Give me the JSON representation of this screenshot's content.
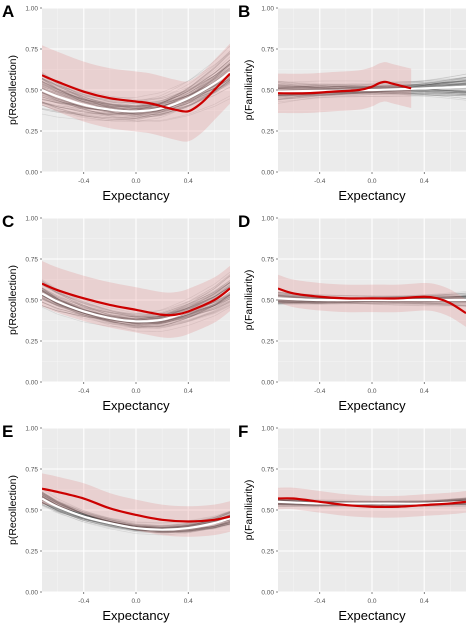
{
  "chart_data": [
    {
      "panel": "A",
      "type": "line",
      "xlabel": "Expectancy",
      "ylabel": "p(Recollection)",
      "xlim": [
        -0.72,
        0.72
      ],
      "ylim": [
        0,
        1
      ],
      "x_ticks": [
        "-0.4",
        "0.0",
        "0.4"
      ],
      "y_ticks": [
        "0.00",
        "0.25",
        "0.50",
        "0.75",
        "1.00"
      ],
      "band_spread": 0.17,
      "series": [
        {
          "role": "posterior-mean",
          "color": "#ffffff",
          "x": [
            -0.72,
            -0.6,
            -0.4,
            -0.2,
            0.0,
            0.2,
            0.4,
            0.6,
            0.72
          ],
          "y": [
            0.5,
            0.46,
            0.41,
            0.38,
            0.37,
            0.39,
            0.45,
            0.54,
            0.61
          ]
        },
        {
          "role": "observed",
          "color": "#cc0000",
          "x": [
            -0.72,
            -0.6,
            -0.4,
            -0.2,
            0.0,
            0.1,
            0.2,
            0.3,
            0.4,
            0.5,
            0.6,
            0.72
          ],
          "y": [
            0.59,
            0.55,
            0.49,
            0.45,
            0.43,
            0.42,
            0.4,
            0.38,
            0.37,
            0.42,
            0.5,
            0.6
          ]
        }
      ]
    },
    {
      "panel": "B",
      "type": "line",
      "xlabel": "Expectancy",
      "ylabel": "p(Familiarity)",
      "xlim": [
        -0.72,
        0.72
      ],
      "ylim": [
        0,
        1
      ],
      "x_ticks": [
        "-0.4",
        "0.0",
        "0.4"
      ],
      "y_ticks": [
        "0.00",
        "0.25",
        "0.50",
        "0.75",
        "1.00"
      ],
      "band_spread": 0.1,
      "series": [
        {
          "role": "posterior-mean",
          "color": "#ffffff",
          "x": [
            -0.72,
            -0.4,
            0.0,
            0.4,
            0.72
          ],
          "y": [
            0.49,
            0.495,
            0.5,
            0.51,
            0.52
          ]
        },
        {
          "role": "observed",
          "color": "#cc0000",
          "x": [
            -0.72,
            -0.5,
            -0.3,
            -0.1,
            0.0,
            0.05,
            0.1,
            0.15,
            0.2,
            0.25,
            0.3
          ],
          "y": [
            0.48,
            0.48,
            0.49,
            0.5,
            0.52,
            0.54,
            0.55,
            0.54,
            0.53,
            0.52,
            0.51
          ]
        }
      ]
    },
    {
      "panel": "C",
      "type": "line",
      "xlabel": "Expectancy",
      "ylabel": "p(Recollection)",
      "xlim": [
        -0.72,
        0.72
      ],
      "ylim": [
        0,
        1
      ],
      "x_ticks": [
        "-0.4",
        "0.0",
        "0.4"
      ],
      "y_ticks": [
        "0.00",
        "0.25",
        "0.50",
        "0.75",
        "1.00"
      ],
      "band_spread": 0.12,
      "series": [
        {
          "role": "posterior-mean",
          "color": "#ffffff",
          "x": [
            -0.72,
            -0.6,
            -0.4,
            -0.2,
            0.0,
            0.2,
            0.4,
            0.6,
            0.72
          ],
          "y": [
            0.54,
            0.49,
            0.43,
            0.39,
            0.37,
            0.38,
            0.43,
            0.5,
            0.56
          ]
        },
        {
          "role": "observed",
          "color": "#cc0000",
          "x": [
            -0.72,
            -0.6,
            -0.4,
            -0.2,
            0.0,
            0.2,
            0.3,
            0.4,
            0.6,
            0.72
          ],
          "y": [
            0.6,
            0.56,
            0.51,
            0.47,
            0.44,
            0.41,
            0.41,
            0.43,
            0.5,
            0.57
          ]
        }
      ]
    },
    {
      "panel": "D",
      "type": "line",
      "xlabel": "Expectancy",
      "ylabel": "p(Familiarity)",
      "xlim": [
        -0.72,
        0.72
      ],
      "ylim": [
        0,
        1
      ],
      "x_ticks": [
        "-0.4",
        "0.0",
        "0.4"
      ],
      "y_ticks": [
        "0.00",
        "0.25",
        "0.50",
        "0.75",
        "1.00"
      ],
      "band_spread": 0.06,
      "series": [
        {
          "role": "posterior-mean",
          "color": "#ffffff",
          "x": [
            -0.72,
            -0.4,
            0.0,
            0.4,
            0.72
          ],
          "y": [
            0.51,
            0.5,
            0.5,
            0.5,
            0.5
          ]
        },
        {
          "role": "observed",
          "color": "#cc0000",
          "x": [
            -0.72,
            -0.6,
            -0.4,
            -0.2,
            0.0,
            0.2,
            0.4,
            0.5,
            0.6,
            0.72
          ],
          "y": [
            0.57,
            0.54,
            0.52,
            0.51,
            0.51,
            0.51,
            0.52,
            0.51,
            0.48,
            0.42
          ]
        }
      ]
    },
    {
      "panel": "E",
      "type": "line",
      "xlabel": "Expectancy",
      "ylabel": "p(Recollection)",
      "xlim": [
        -0.72,
        0.72
      ],
      "ylim": [
        0,
        1
      ],
      "x_ticks": [
        "-0.4",
        "0.0",
        "0.4"
      ],
      "y_ticks": [
        "0.00",
        "0.25",
        "0.50",
        "0.75",
        "1.00"
      ],
      "band_spread": 0.07,
      "series": [
        {
          "role": "posterior-mean",
          "color": "#ffffff",
          "x": [
            -0.72,
            -0.6,
            -0.4,
            -0.2,
            0.0,
            0.2,
            0.4,
            0.6,
            0.72
          ],
          "y": [
            0.57,
            0.52,
            0.46,
            0.42,
            0.39,
            0.38,
            0.39,
            0.42,
            0.45
          ]
        },
        {
          "role": "observed",
          "color": "#cc0000",
          "x": [
            -0.72,
            -0.6,
            -0.4,
            -0.2,
            0.0,
            0.2,
            0.4,
            0.6,
            0.72
          ],
          "y": [
            0.63,
            0.61,
            0.57,
            0.51,
            0.47,
            0.44,
            0.43,
            0.44,
            0.46
          ]
        }
      ]
    },
    {
      "panel": "F",
      "type": "line",
      "xlabel": "Expectancy",
      "ylabel": "p(Familiarity)",
      "xlim": [
        -0.72,
        0.72
      ],
      "ylim": [
        0,
        1
      ],
      "x_ticks": [
        "-0.4",
        "0.0",
        "0.4"
      ],
      "y_ticks": [
        "0.00",
        "0.25",
        "0.50",
        "0.75",
        "1.00"
      ],
      "band_spread": 0.04,
      "series": [
        {
          "role": "posterior-mean",
          "color": "#ffffff",
          "x": [
            -0.72,
            -0.4,
            0.0,
            0.4,
            0.72
          ],
          "y": [
            0.55,
            0.54,
            0.54,
            0.54,
            0.55
          ]
        },
        {
          "role": "observed",
          "color": "#cc0000",
          "x": [
            -0.72,
            -0.6,
            -0.4,
            -0.2,
            0.0,
            0.2,
            0.4,
            0.6,
            0.72
          ],
          "y": [
            0.57,
            0.57,
            0.55,
            0.53,
            0.52,
            0.52,
            0.53,
            0.54,
            0.55
          ]
        }
      ]
    }
  ]
}
